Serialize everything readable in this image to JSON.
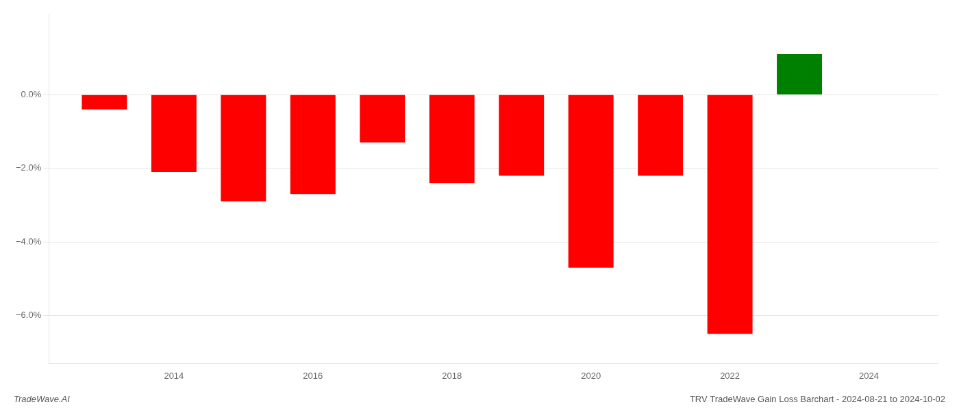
{
  "chart_data": {
    "type": "bar",
    "title": "TRV TradeWave Gain Loss Barchart - 2024-08-21 to 2024-10-02",
    "annotations": [
      "TradeWave.AI"
    ],
    "x": [
      2013,
      2014,
      2015,
      2016,
      2017,
      2018,
      2019,
      2020,
      2021,
      2022,
      2023
    ],
    "values": [
      -0.004,
      -0.021,
      -0.029,
      -0.027,
      -0.013,
      -0.024,
      -0.022,
      -0.047,
      -0.022,
      -0.065,
      0.011
    ],
    "colors": [
      "#ff0000",
      "#ff0000",
      "#ff0000",
      "#ff0000",
      "#ff0000",
      "#ff0000",
      "#ff0000",
      "#ff0000",
      "#ff0000",
      "#ff0000",
      "#008000"
    ],
    "xlim": [
      2012.2,
      2025.0
    ],
    "xticks": [
      2014,
      2016,
      2018,
      2020,
      2022,
      2024
    ],
    "ylim": [
      -0.073,
      0.022
    ],
    "yticks": [
      {
        "value": 0.0,
        "label": "0.0%"
      },
      {
        "value": -0.02,
        "label": "−2.0%"
      },
      {
        "value": -0.04,
        "label": "−4.0%"
      },
      {
        "value": -0.06,
        "label": "−6.0%"
      }
    ],
    "grid": true
  }
}
